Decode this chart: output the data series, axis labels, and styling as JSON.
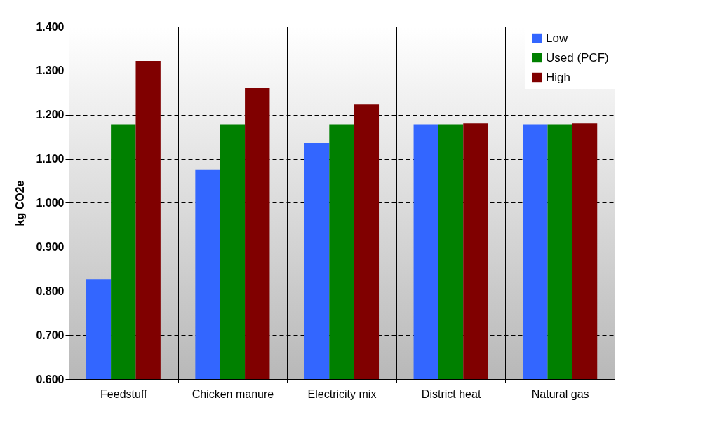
{
  "chart_data": {
    "type": "bar",
    "ylabel": "kg CO2e",
    "categories": [
      "Feedstuff",
      "Chicken manure",
      "Electricity mix",
      "District heat",
      "Natural gas"
    ],
    "series": [
      {
        "name": "Low",
        "color": "#3366ff",
        "values": [
          0.827,
          1.076,
          1.136,
          1.178,
          1.178
        ]
      },
      {
        "name": "Used (PCF)",
        "color": "#008000",
        "values": [
          1.178,
          1.178,
          1.178,
          1.178,
          1.178
        ]
      },
      {
        "name": "High",
        "color": "#800000",
        "values": [
          1.322,
          1.26,
          1.223,
          1.18,
          1.18
        ]
      }
    ],
    "ylim": [
      0.6,
      1.4
    ],
    "yticks": [
      {
        "value": 0.6,
        "label": "0.600"
      },
      {
        "value": 0.7,
        "label": "0.700"
      },
      {
        "value": 0.8,
        "label": "0.800"
      },
      {
        "value": 0.9,
        "label": "0.900"
      },
      {
        "value": 1.0,
        "label": "1.000"
      },
      {
        "value": 1.1,
        "label": "1.100"
      },
      {
        "value": 1.2,
        "label": "1.200"
      },
      {
        "value": 1.3,
        "label": "1.300"
      },
      {
        "value": 1.4,
        "label": "1.400"
      }
    ],
    "grid": true,
    "legend": "top right"
  }
}
